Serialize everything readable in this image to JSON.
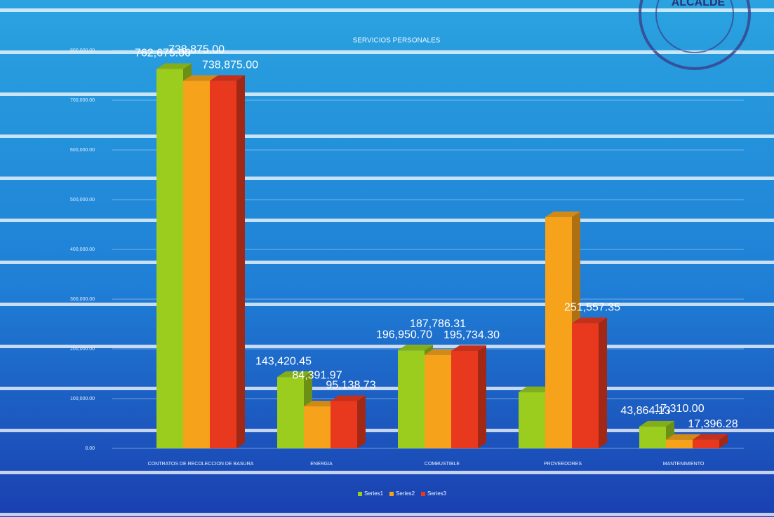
{
  "stamp": {
    "text": "ALCALDE"
  },
  "chart_data": {
    "type": "bar3d",
    "title": "SERVICIOS PERSONALES",
    "categories": [
      "CONTRATOS DE RECOLECCION DE BASURA",
      "ENERGIA",
      "COMBUSTIBLE",
      "PROVEEDORES",
      "MANTENIMIENTO"
    ],
    "series": [
      {
        "name": "Series1",
        "color": "#9acd1e",
        "values": [
          762675.0,
          143420.45,
          196950.7,
          113000,
          43864.13
        ],
        "value_labels": [
          "762,675.00",
          "143,420.45",
          "196,950.70",
          null,
          "43,864.13"
        ]
      },
      {
        "name": "Series2",
        "color": "#f7a21b",
        "values": [
          738875.0,
          84391.97,
          187786.31,
          465000,
          17310.0
        ],
        "value_labels": [
          "738,875.00",
          "84,391.97",
          "187,786.31",
          null,
          "17,310.00"
        ]
      },
      {
        "name": "Series3",
        "color": "#e8391f",
        "values": [
          738875.0,
          95138.73,
          195734.3,
          251557.35,
          17396.28
        ],
        "value_labels": [
          "738,875.00",
          "95,138.73",
          "195,734.30",
          "251,557.35",
          "17,396.28"
        ]
      }
    ],
    "ylim": [
      0,
      800000
    ],
    "yticks": [
      {
        "value": 0,
        "label": "0.00"
      },
      {
        "value": 100000,
        "label": "100,000.00"
      },
      {
        "value": 200000,
        "label": "200,000.00"
      },
      {
        "value": 300000,
        "label": "300,000.00"
      },
      {
        "value": 400000,
        "label": "400,000.00"
      },
      {
        "value": 500000,
        "label": "500,000.00"
      },
      {
        "value": 600000,
        "label": "600,000.00"
      },
      {
        "value": 700000,
        "label": "700,000.00"
      },
      {
        "value": 800000,
        "label": "800,000.00"
      }
    ],
    "grid": true,
    "legend": "bottom"
  }
}
